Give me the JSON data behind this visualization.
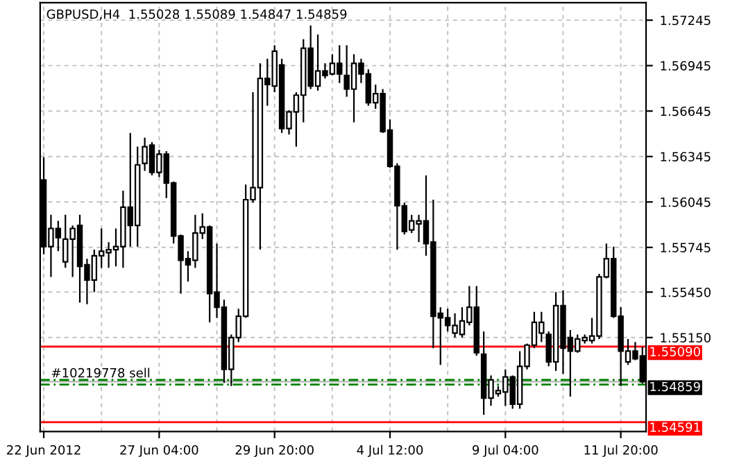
{
  "chart_data": {
    "type": "candlestick",
    "title": "GBPUSD,H4  1.55028 1.55089 1.54847 1.54859",
    "categories": [
      "22 Jun 2012",
      null,
      null,
      null,
      null,
      null,
      null,
      null,
      null,
      null,
      null,
      null,
      null,
      null,
      null,
      null,
      "27 Jun 04:00",
      null,
      null,
      null,
      null,
      null,
      null,
      null,
      null,
      null,
      null,
      null,
      null,
      null,
      null,
      null,
      "29 Jun 20:00",
      null,
      null,
      null,
      null,
      null,
      null,
      null,
      null,
      null,
      null,
      null,
      null,
      null,
      null,
      null,
      "4 Jul 12:00",
      null,
      null,
      null,
      null,
      null,
      null,
      null,
      null,
      null,
      null,
      null,
      null,
      null,
      null,
      null,
      "9 Jul 04:00",
      null,
      null,
      null,
      null,
      null,
      null,
      null,
      null,
      null,
      null,
      null,
      null,
      null,
      null,
      null,
      "11 Jul 20:00",
      null,
      null,
      null
    ],
    "ohlc": [
      [
        1.5619,
        1.5634,
        1.557,
        1.5575
      ],
      [
        1.5575,
        1.5596,
        1.5555,
        1.5587
      ],
      [
        1.5587,
        1.5592,
        1.5572,
        1.5581
      ],
      [
        1.5565,
        1.5596,
        1.5561,
        1.558
      ],
      [
        1.558,
        1.5589,
        1.5555,
        1.5587
      ],
      [
        1.5589,
        1.5596,
        1.5538,
        1.5562
      ],
      [
        1.5563,
        1.5567,
        1.5537,
        1.5553
      ],
      [
        1.5553,
        1.5573,
        1.5545,
        1.5569
      ],
      [
        1.5569,
        1.5587,
        1.5561,
        1.5572
      ],
      [
        1.5571,
        1.5578,
        1.5561,
        1.5573
      ],
      [
        1.5573,
        1.5587,
        1.5562,
        1.5575
      ],
      [
        1.5575,
        1.5612,
        1.5561,
        1.5601
      ],
      [
        1.5601,
        1.565,
        1.5575,
        1.5589
      ],
      [
        1.5589,
        1.5641,
        1.5575,
        1.5629
      ],
      [
        1.563,
        1.5647,
        1.5625,
        1.5641
      ],
      [
        1.5642,
        1.5644,
        1.5622,
        1.5624
      ],
      [
        1.5624,
        1.5639,
        1.5621,
        1.5636
      ],
      [
        1.5636,
        1.5638,
        1.5607,
        1.5617
      ],
      [
        1.5617,
        1.5618,
        1.5577,
        1.5582
      ],
      [
        1.5582,
        1.5583,
        1.5544,
        1.5566
      ],
      [
        1.5567,
        1.5572,
        1.5552,
        1.5563
      ],
      [
        1.5566,
        1.5596,
        1.5561,
        1.5584
      ],
      [
        1.5584,
        1.5597,
        1.558,
        1.5588
      ],
      [
        1.5588,
        1.5589,
        1.5525,
        1.5544
      ],
      [
        1.5545,
        1.5577,
        1.5528,
        1.5535
      ],
      [
        1.5535,
        1.554,
        1.5485,
        1.5494
      ],
      [
        1.5494,
        1.5517,
        1.5483,
        1.5515
      ],
      [
        1.5515,
        1.5534,
        1.5512,
        1.5529
      ],
      [
        1.5529,
        1.5616,
        1.5528,
        1.5606
      ],
      [
        1.5606,
        1.5677,
        1.5604,
        1.5614
      ],
      [
        1.5614,
        1.5696,
        1.5573,
        1.5686
      ],
      [
        1.5686,
        1.5699,
        1.5668,
        1.5682
      ],
      [
        1.5681,
        1.5708,
        1.5677,
        1.5704
      ],
      [
        1.5695,
        1.5699,
        1.565,
        1.5653
      ],
      [
        1.5653,
        1.5665,
        1.5649,
        1.5664
      ],
      [
        1.5664,
        1.5677,
        1.5641,
        1.5675
      ],
      [
        1.5675,
        1.5712,
        1.5657,
        1.5706
      ],
      [
        1.5706,
        1.5721,
        1.5679,
        1.5681
      ],
      [
        1.5681,
        1.5715,
        1.5678,
        1.5691
      ],
      [
        1.5691,
        1.5696,
        1.5686,
        1.5688
      ],
      [
        1.5689,
        1.5702,
        1.5688,
        1.5696
      ],
      [
        1.5696,
        1.5708,
        1.5683,
        1.5689
      ],
      [
        1.5688,
        1.5708,
        1.5674,
        1.5679
      ],
      [
        1.5679,
        1.5702,
        1.5657,
        1.5696
      ],
      [
        1.5696,
        1.5699,
        1.5683,
        1.5689
      ],
      [
        1.5689,
        1.5692,
        1.5668,
        1.567
      ],
      [
        1.567,
        1.5682,
        1.5666,
        1.5676
      ],
      [
        1.5676,
        1.5679,
        1.565,
        1.5651
      ],
      [
        1.5652,
        1.5659,
        1.5627,
        1.5628
      ],
      [
        1.5628,
        1.563,
        1.5573,
        1.5602
      ],
      [
        1.5602,
        1.5604,
        1.5583,
        1.5585
      ],
      [
        1.5586,
        1.5596,
        1.5584,
        1.5592
      ],
      [
        1.559,
        1.5596,
        1.5578,
        1.5592
      ],
      [
        1.5592,
        1.5622,
        1.5569,
        1.5577
      ],
      [
        1.5578,
        1.5606,
        1.5508,
        1.5529
      ],
      [
        1.5531,
        1.5535,
        1.5497,
        1.5528
      ],
      [
        1.5528,
        1.5534,
        1.5519,
        1.5523
      ],
      [
        1.5518,
        1.5531,
        1.5515,
        1.5523
      ],
      [
        1.5517,
        1.5535,
        1.5515,
        1.5526
      ],
      [
        1.5525,
        1.5549,
        1.5523,
        1.5535
      ],
      [
        1.5535,
        1.5549,
        1.5503,
        1.5505
      ],
      [
        1.5504,
        1.5519,
        1.5464,
        1.5475
      ],
      [
        1.5475,
        1.549,
        1.547,
        1.5487
      ],
      [
        1.5478,
        1.5483,
        1.5476,
        1.548
      ],
      [
        1.5479,
        1.5494,
        1.547,
        1.5489
      ],
      [
        1.5489,
        1.549,
        1.5468,
        1.5471
      ],
      [
        1.5471,
        1.5506,
        1.5468,
        1.5496
      ],
      [
        1.5496,
        1.5511,
        1.5494,
        1.551
      ],
      [
        1.551,
        1.5532,
        1.5508,
        1.5525
      ],
      [
        1.5518,
        1.5532,
        1.5512,
        1.5525
      ],
      [
        1.5517,
        1.5519,
        1.5496,
        1.5499
      ],
      [
        1.5499,
        1.5545,
        1.5493,
        1.5536
      ],
      [
        1.5536,
        1.5546,
        1.5491,
        1.5508
      ],
      [
        1.5515,
        1.552,
        1.5476,
        1.5506
      ],
      [
        1.5506,
        1.5517,
        1.5505,
        1.5514
      ],
      [
        1.5513,
        1.5517,
        1.5511,
        1.5515
      ],
      [
        1.5513,
        1.5528,
        1.5511,
        1.5516
      ],
      [
        1.5516,
        1.5557,
        1.5514,
        1.5555
      ],
      [
        1.5555,
        1.5577,
        1.5554,
        1.5567
      ],
      [
        1.5567,
        1.5575,
        1.5528,
        1.5529
      ],
      [
        1.5529,
        1.5535,
        1.5483,
        1.5506
      ],
      [
        1.5499,
        1.5514,
        1.5497,
        1.5506
      ],
      [
        1.5506,
        1.5512,
        1.55,
        1.5501
      ],
      [
        1.55028,
        1.55089,
        1.54847,
        1.54859
      ]
    ],
    "ylim": [
      1.5453,
      1.5736
    ],
    "yticks": [
      1.57245,
      1.56945,
      1.56645,
      1.56345,
      1.56045,
      1.55745,
      {
        "value": 1.5545,
        "label": "1.55450"
      },
      {
        "value": 1.5515,
        "label": "1.55150"
      }
    ],
    "grid": true,
    "ref_lines": [
      {
        "axis": "y",
        "value": 1.5509,
        "label": "1.55090",
        "color": "#ff0000",
        "line_style": "solid"
      },
      {
        "axis": "y",
        "value": 1.54859,
        "label": "1.54859",
        "color": "#c0c0c0",
        "line_style": "solid"
      },
      {
        "axis": "y",
        "value": 1.54591,
        "label": "1.54591",
        "color": "#ff0000",
        "line_style": "solid"
      },
      {
        "axis": "y",
        "value": 1.5487,
        "label": "#10219778 sell",
        "color": "#008000",
        "line_style": "dashed"
      },
      {
        "axis": "y",
        "value": 1.5484,
        "label": null,
        "color": "#008000",
        "line_style": "dashed"
      }
    ]
  }
}
